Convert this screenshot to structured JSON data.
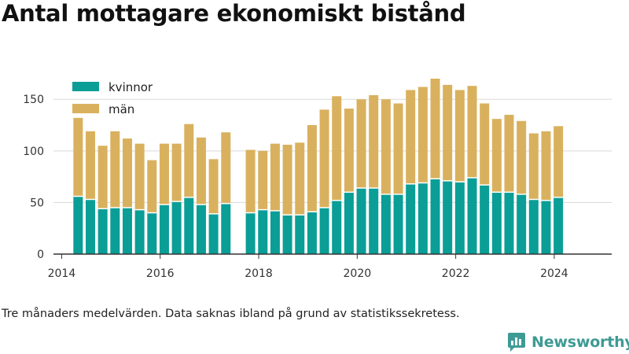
{
  "title": "Antal mottagare ekonomiskt bistånd",
  "note": "Tre månaders medelvärden. Data saknas ibland på grund av statistikssekretess.",
  "brand": {
    "name": "Newsworthy",
    "logo_icon": "newsworthy-logo-icon"
  },
  "colors": {
    "kvinnor": "#0a9e96",
    "man": "#d9b15e",
    "grid": "#d9d9d9",
    "axis": "#333333"
  },
  "chart_data": {
    "type": "bar",
    "stacked": true,
    "title": "Antal mottagare ekonomiskt bistånd",
    "xlabel": "",
    "ylabel": "",
    "ylim": [
      0,
      170
    ],
    "xlim": [
      "2013-11",
      "2025-03"
    ],
    "grid": "horizontal",
    "legend_position": "top-left",
    "y_ticks": [
      0,
      50,
      100,
      150
    ],
    "x_ticks": [
      "2014",
      "2016",
      "2018",
      "2020",
      "2022",
      "2024"
    ],
    "x_tick_dates": [
      "2014-01",
      "2016-01",
      "2018-01",
      "2020-01",
      "2022-01",
      "2024-01"
    ],
    "categories": [
      "2014-05",
      "2014-08",
      "2014-11",
      "2015-02",
      "2015-05",
      "2015-08",
      "2015-11",
      "2016-02",
      "2016-05",
      "2016-08",
      "2016-11",
      "2017-02",
      "2017-05",
      "2017-11",
      "2018-02",
      "2018-05",
      "2018-08",
      "2018-11",
      "2019-02",
      "2019-05",
      "2019-08",
      "2019-11",
      "2020-02",
      "2020-05",
      "2020-08",
      "2020-11",
      "2021-02",
      "2021-05",
      "2021-08",
      "2021-11",
      "2022-02",
      "2022-05",
      "2022-08",
      "2022-11",
      "2023-02",
      "2023-05",
      "2023-08",
      "2023-11",
      "2024-02"
    ],
    "series": [
      {
        "name": "kvinnor",
        "values": [
          56,
          53,
          44,
          45,
          45,
          43,
          40,
          48,
          51,
          55,
          48,
          39,
          49,
          40,
          43,
          42,
          38,
          38,
          41,
          45,
          52,
          60,
          64,
          64,
          58,
          58,
          68,
          69,
          73,
          71,
          70,
          74,
          67,
          60,
          60,
          58,
          53,
          52,
          55
        ]
      },
      {
        "name": "män",
        "values": [
          76,
          66,
          61,
          74,
          67,
          64,
          51,
          59,
          56,
          71,
          65,
          53,
          69,
          61,
          57,
          65,
          68,
          70,
          84,
          95,
          101,
          81,
          86,
          90,
          92,
          88,
          91,
          93,
          97,
          93,
          89,
          89,
          79,
          71,
          75,
          71,
          64,
          67,
          69
        ]
      }
    ]
  }
}
